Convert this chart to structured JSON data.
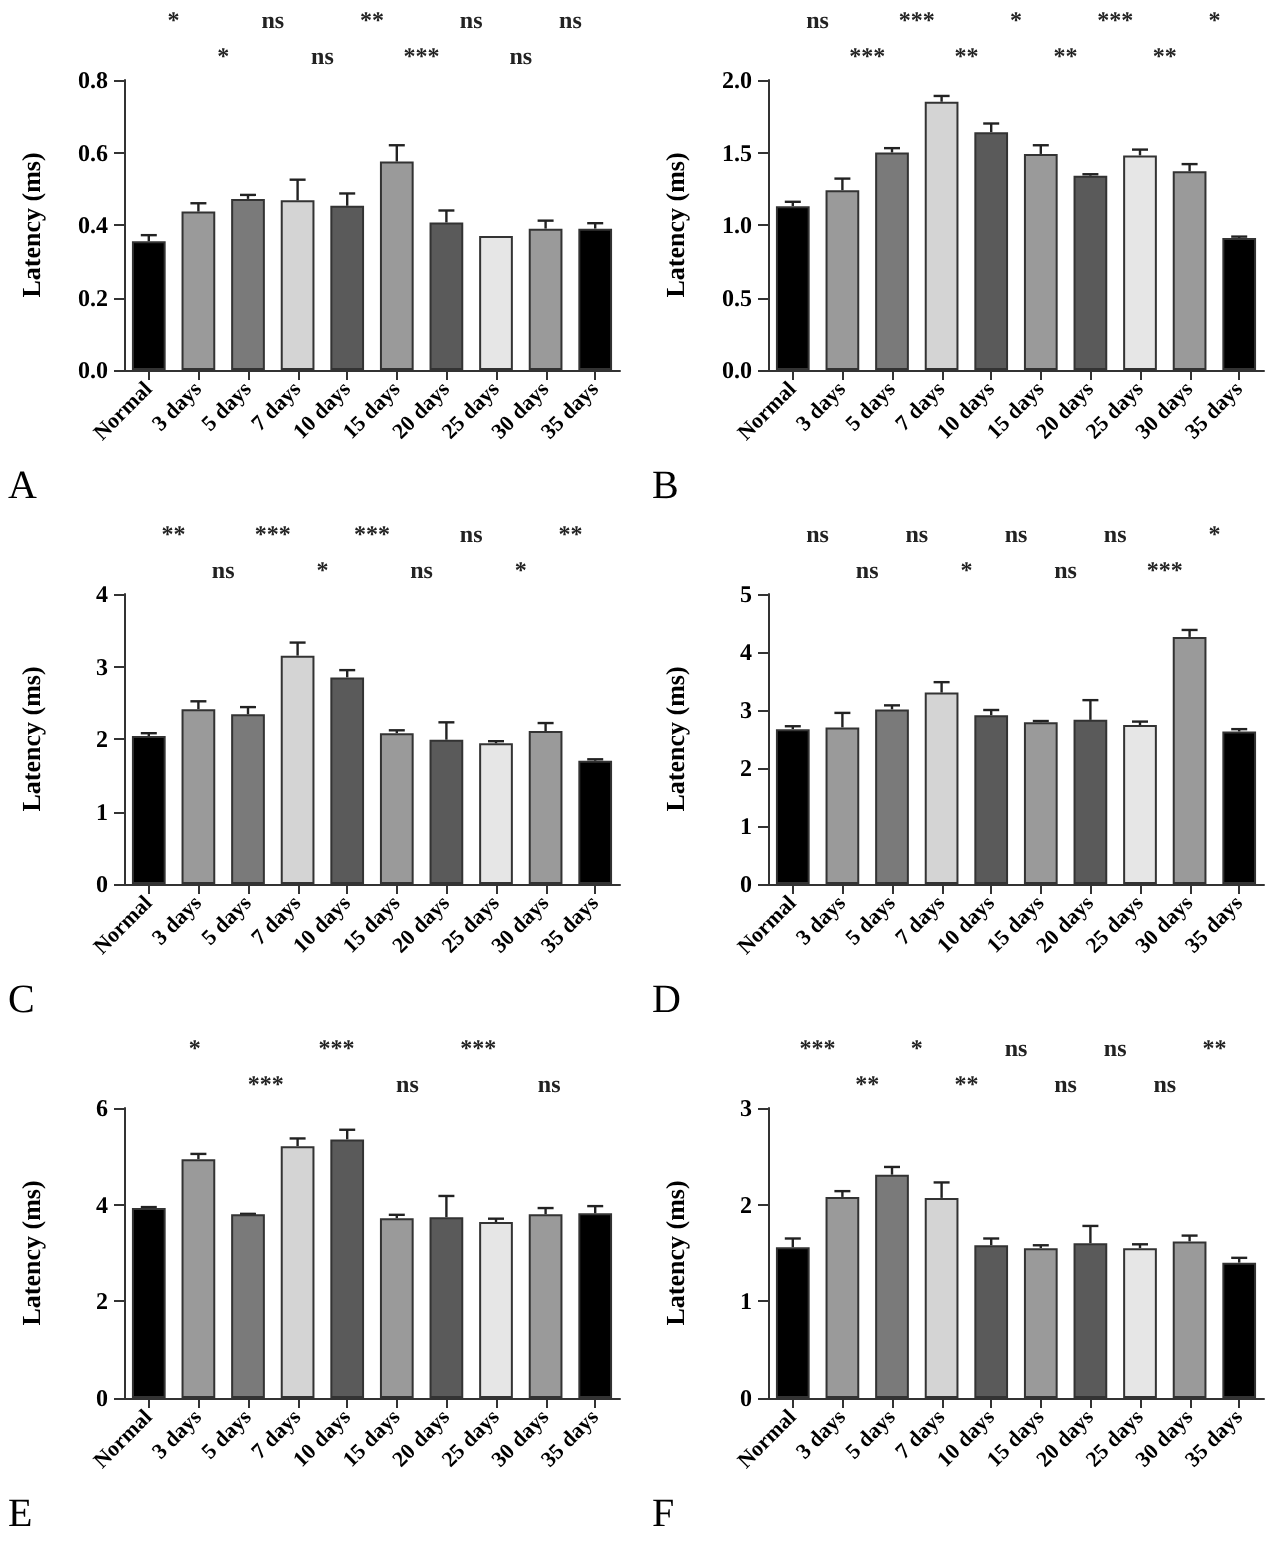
{
  "chart_data": [
    {
      "type": "bar",
      "title": "A",
      "ylabel": "Latency (ms)",
      "categories": [
        "Normal",
        "3 days",
        "5 days",
        "7 days",
        "10 days",
        "15 days",
        "20 days",
        "25 days",
        "30 days",
        "35 days"
      ],
      "values": [
        0.355,
        0.437,
        0.472,
        0.468,
        0.453,
        0.575,
        0.407,
        0.37,
        0.39,
        0.39
      ],
      "errors": [
        [
          0.355,
          0.372
        ],
        [
          0.437,
          0.46
        ],
        [
          0.472,
          0.483
        ],
        [
          0.468,
          0.525
        ],
        [
          0.453,
          0.487
        ],
        [
          0.575,
          0.62
        ],
        [
          0.407,
          0.44
        ],
        null,
        [
          0.39,
          0.412
        ],
        [
          0.39,
          0.405
        ]
      ],
      "colors": [
        "#000000",
        "#9a9a9a",
        "#7a7a7a",
        "#d4d4d4",
        "#5a5a5a",
        "#9a9a9a",
        "#5a5a5a",
        "#e6e6e6",
        "#9a9a9a",
        "#000000"
      ],
      "ylim": [
        0,
        0.8
      ],
      "yticks": [
        {
          "value": 0,
          "label": "0.0"
        },
        {
          "value": 0.2,
          "label": "0.2"
        },
        {
          "value": 0.4,
          "label": "0.4"
        },
        {
          "value": 0.6,
          "label": "0.6"
        },
        {
          "value": 0.8,
          "label": "0.8"
        }
      ],
      "annotations": [
        "*",
        "*",
        "ns",
        "ns",
        "**",
        "***",
        "ns",
        "ns",
        "ns"
      ],
      "grid": false
    },
    {
      "type": "bar",
      "title": "B",
      "ylabel": "Latency (ms)",
      "categories": [
        "Normal",
        "3 days",
        "5 days",
        "7 days",
        "10 days",
        "15 days",
        "20 days",
        "25 days",
        "30 days",
        "35 days"
      ],
      "values": [
        1.13,
        1.24,
        1.5,
        1.85,
        1.64,
        1.49,
        1.34,
        1.48,
        1.37,
        0.91
      ],
      "errors": [
        [
          1.13,
          1.16
        ],
        [
          1.24,
          1.32
        ],
        [
          1.5,
          1.53
        ],
        [
          1.85,
          1.89
        ],
        [
          1.64,
          1.7
        ],
        [
          1.49,
          1.55
        ],
        [
          1.34,
          1.35
        ],
        [
          1.48,
          1.52
        ],
        [
          1.37,
          1.42
        ],
        [
          0.91,
          0.92
        ]
      ],
      "colors": [
        "#000000",
        "#9a9a9a",
        "#7a7a7a",
        "#d4d4d4",
        "#5a5a5a",
        "#9a9a9a",
        "#5a5a5a",
        "#e6e6e6",
        "#9a9a9a",
        "#000000"
      ],
      "ylim": [
        0,
        2
      ],
      "yticks": [
        {
          "value": 0,
          "label": "0.0"
        },
        {
          "value": 0.5,
          "label": "0.5"
        },
        {
          "value": 1,
          "label": "1.0"
        },
        {
          "value": 1.5,
          "label": "1.5"
        },
        {
          "value": 2,
          "label": "2.0"
        }
      ],
      "annotations": [
        "ns",
        "***",
        "***",
        "**",
        "*",
        "**",
        "***",
        "**",
        "*"
      ],
      "grid": false
    },
    {
      "type": "bar",
      "title": "C",
      "ylabel": "Latency (ms)",
      "categories": [
        "Normal",
        "3 days",
        "5 days",
        "7 days",
        "10 days",
        "15 days",
        "20 days",
        "25 days",
        "30 days",
        "35 days"
      ],
      "values": [
        2.04,
        2.41,
        2.34,
        3.15,
        2.85,
        2.08,
        1.99,
        1.94,
        2.11,
        1.7
      ],
      "errors": [
        [
          2.04,
          2.08
        ],
        [
          2.41,
          2.52
        ],
        [
          2.34,
          2.44
        ],
        [
          3.15,
          3.33
        ],
        [
          2.85,
          2.95
        ],
        [
          2.08,
          2.12
        ],
        [
          1.99,
          2.23
        ],
        [
          1.94,
          1.97
        ],
        [
          2.11,
          2.22
        ],
        [
          1.7,
          1.72
        ]
      ],
      "colors": [
        "#000000",
        "#9a9a9a",
        "#7a7a7a",
        "#d4d4d4",
        "#5a5a5a",
        "#9a9a9a",
        "#5a5a5a",
        "#e6e6e6",
        "#9a9a9a",
        "#000000"
      ],
      "ylim": [
        0,
        4
      ],
      "yticks": [
        0,
        1,
        2,
        3,
        4
      ],
      "annotations": [
        "**",
        "ns",
        "***",
        "*",
        "***",
        "ns",
        "ns",
        "*",
        "**"
      ],
      "grid": false
    },
    {
      "type": "bar",
      "title": "D",
      "ylabel": "Latency (ms)",
      "categories": [
        "Normal",
        "3 days",
        "5 days",
        "7 days",
        "10 days",
        "15 days",
        "20 days",
        "25 days",
        "30 days",
        "35 days"
      ],
      "values": [
        2.67,
        2.7,
        3.01,
        3.3,
        2.91,
        2.79,
        2.83,
        2.74,
        4.26,
        2.63
      ],
      "errors": [
        [
          2.67,
          2.72
        ],
        [
          2.7,
          2.95
        ],
        [
          3.01,
          3.08
        ],
        [
          3.3,
          3.48
        ],
        [
          2.91,
          3.0
        ],
        [
          2.79,
          2.81
        ],
        [
          2.83,
          3.17
        ],
        [
          2.74,
          2.8
        ],
        [
          4.26,
          4.38
        ],
        [
          2.63,
          2.67
        ]
      ],
      "colors": [
        "#000000",
        "#9a9a9a",
        "#7a7a7a",
        "#d4d4d4",
        "#5a5a5a",
        "#9a9a9a",
        "#5a5a5a",
        "#e6e6e6",
        "#9a9a9a",
        "#000000"
      ],
      "ylim": [
        0,
        5
      ],
      "yticks": [
        0,
        1,
        2,
        3,
        4,
        5
      ],
      "annotations": [
        "ns",
        "ns",
        "ns",
        "*",
        "ns",
        "ns",
        "ns",
        "***",
        "*"
      ],
      "grid": false
    },
    {
      "type": "bar",
      "title": "E",
      "ylabel": "Latency (ms)",
      "categories": [
        "Normal",
        "3 days",
        "5 days",
        "7 days",
        "10 days",
        "15 days",
        "20 days",
        "25 days",
        "30 days",
        "35 days"
      ],
      "values": [
        3.93,
        4.94,
        3.8,
        5.21,
        5.35,
        3.72,
        3.74,
        3.64,
        3.8,
        3.82
      ],
      "errors": [
        [
          3.93,
          3.95
        ],
        [
          4.94,
          5.05
        ],
        [
          3.8,
          3.81
        ],
        [
          5.21,
          5.37
        ],
        [
          5.35,
          5.55
        ],
        [
          3.72,
          3.79
        ],
        [
          3.74,
          4.18
        ],
        [
          3.64,
          3.71
        ],
        [
          3.8,
          3.93
        ],
        [
          3.82,
          3.97
        ]
      ],
      "colors": [
        "#000000",
        "#9a9a9a",
        "#7a7a7a",
        "#d4d4d4",
        "#5a5a5a",
        "#9a9a9a",
        "#5a5a5a",
        "#e6e6e6",
        "#9a9a9a",
        "#000000"
      ],
      "ylim": [
        0,
        6
      ],
      "yticks": [
        0,
        2,
        4,
        6
      ],
      "annotations": [
        "*",
        "***",
        "***",
        "ns",
        "***",
        "ns"
      ],
      "grid": false
    },
    {
      "type": "bar",
      "title": "F",
      "ylabel": "Latency (ms)",
      "categories": [
        "Normal",
        "3 days",
        "5 days",
        "7 days",
        "10 days",
        "15 days",
        "20 days",
        "25 days",
        "30 days",
        "35 days"
      ],
      "values": [
        1.56,
        2.08,
        2.31,
        2.07,
        1.58,
        1.55,
        1.6,
        1.55,
        1.62,
        1.4
      ],
      "errors": [
        [
          1.56,
          1.65
        ],
        [
          2.08,
          2.14
        ],
        [
          2.31,
          2.39
        ],
        [
          2.07,
          2.23
        ],
        [
          1.58,
          1.65
        ],
        [
          1.55,
          1.58
        ],
        [
          1.6,
          1.78
        ],
        [
          1.55,
          1.59
        ],
        [
          1.62,
          1.68
        ],
        [
          1.4,
          1.45
        ]
      ],
      "colors": [
        "#000000",
        "#9a9a9a",
        "#7a7a7a",
        "#d4d4d4",
        "#5a5a5a",
        "#9a9a9a",
        "#5a5a5a",
        "#e6e6e6",
        "#9a9a9a",
        "#000000"
      ],
      "ylim": [
        0,
        3
      ],
      "yticks": [
        0,
        1,
        2,
        3
      ],
      "annotations": [
        "***",
        "**",
        "*",
        "**",
        "ns",
        "ns",
        "ns",
        "ns",
        "**"
      ],
      "grid": false
    }
  ]
}
